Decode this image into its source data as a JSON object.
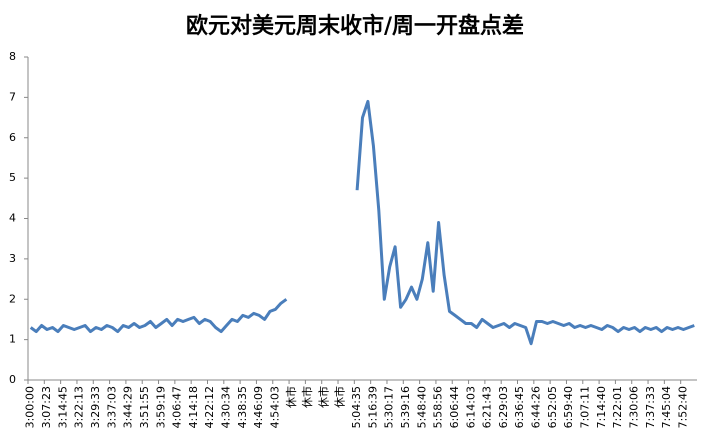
{
  "chart_data": {
    "type": "line",
    "title": "欧元对美元周末收市/周一开盘点差",
    "categories": [
      "3:00:00",
      null,
      null,
      "3:07:23",
      null,
      null,
      "3:14:45",
      null,
      null,
      "3:22:13",
      null,
      null,
      "3:29:33",
      null,
      null,
      "3:37:03",
      null,
      null,
      "3:44:29",
      null,
      null,
      "3:51:55",
      null,
      null,
      "3:59:19",
      null,
      null,
      "4:06:47",
      null,
      null,
      "4:14:18",
      null,
      null,
      "4:22:12",
      null,
      null,
      "4:30:34",
      null,
      null,
      "4:38:35",
      null,
      null,
      "4:46:09",
      null,
      null,
      "4:54:03",
      null,
      null,
      "休市",
      null,
      null,
      "休市",
      null,
      null,
      "休市",
      null,
      null,
      "休市",
      null,
      null,
      "5:04:35",
      null,
      null,
      "5:16:39",
      null,
      null,
      "5:30:17",
      null,
      null,
      "5:39:16",
      null,
      null,
      "5:48:40",
      null,
      null,
      "5:58:56",
      null,
      null,
      "6:06:44",
      null,
      null,
      "6:14:03",
      null,
      null,
      "6:21:43",
      null,
      null,
      "6:29:03",
      null,
      null,
      "6:36:45",
      null,
      null,
      "6:44:26",
      null,
      null,
      "6:52:05",
      null,
      null,
      "6:59:40",
      null,
      null,
      "7:07:11",
      null,
      null,
      "7:14:40",
      null,
      null,
      "7:22:01",
      null,
      null,
      "7:30:06",
      null,
      null,
      "7:37:33",
      null,
      null,
      "7:45:04",
      null,
      null,
      "7:52:40",
      null,
      null
    ],
    "values": [
      1.3,
      1.2,
      1.35,
      1.25,
      1.3,
      1.2,
      1.35,
      1.3,
      1.25,
      1.3,
      1.35,
      1.2,
      1.3,
      1.25,
      1.35,
      1.3,
      1.2,
      1.35,
      1.3,
      1.4,
      1.3,
      1.35,
      1.45,
      1.3,
      1.4,
      1.5,
      1.35,
      1.5,
      1.45,
      1.5,
      1.55,
      1.4,
      1.5,
      1.45,
      1.3,
      1.2,
      1.35,
      1.5,
      1.45,
      1.6,
      1.55,
      1.65,
      1.6,
      1.5,
      1.7,
      1.75,
      1.9,
      2.0,
      null,
      null,
      null,
      null,
      null,
      null,
      null,
      null,
      null,
      null,
      null,
      null,
      4.7,
      6.5,
      6.9,
      5.8,
      4.2,
      2.0,
      2.8,
      3.3,
      1.8,
      2.0,
      2.3,
      2.0,
      2.5,
      3.4,
      2.2,
      3.9,
      2.6,
      1.7,
      1.6,
      1.5,
      1.4,
      1.4,
      1.3,
      1.5,
      1.4,
      1.3,
      1.35,
      1.4,
      1.3,
      1.4,
      1.35,
      1.3,
      0.9,
      1.45,
      1.45,
      1.4,
      1.45,
      1.4,
      1.35,
      1.4,
      1.3,
      1.35,
      1.3,
      1.35,
      1.3,
      1.25,
      1.35,
      1.3,
      1.2,
      1.3,
      1.25,
      1.3,
      1.2,
      1.3,
      1.25,
      1.3,
      1.2,
      1.3,
      1.25,
      1.3,
      1.25,
      1.3,
      1.35
    ],
    "color": "#4a7ebb",
    "ylim": [
      0,
      8
    ],
    "yticks": [
      0,
      1,
      2,
      3,
      4,
      5,
      6,
      7,
      8
    ]
  }
}
